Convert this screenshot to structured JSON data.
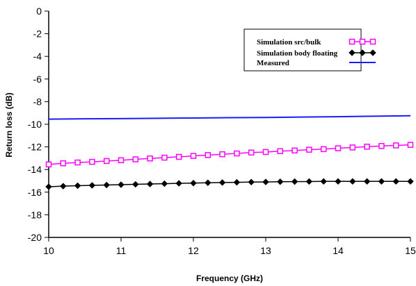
{
  "chart_data": {
    "type": "line",
    "xlabel": "Frequency (GHz)",
    "ylabel": "Return loss (dB)",
    "xlim": [
      10,
      15
    ],
    "ylim": [
      -20,
      0
    ],
    "xticks": [
      "10",
      "11",
      "12",
      "13",
      "14",
      "15"
    ],
    "yticks": [
      "0",
      "-2",
      "-4",
      "-6",
      "-8",
      "-10",
      "-12",
      "-14",
      "-16",
      "-18",
      "-20"
    ],
    "grid": false,
    "legend_position": "top-right",
    "series": [
      {
        "name": "Simulation src/bulk",
        "color": "#ff00ff",
        "marker": "square",
        "x": [
          10,
          10.2,
          10.4,
          10.6,
          10.8,
          11,
          11.2,
          11.4,
          11.6,
          11.8,
          12,
          12.2,
          12.4,
          12.6,
          12.8,
          13,
          13.2,
          13.4,
          13.6,
          13.8,
          14,
          14.2,
          14.4,
          14.6,
          14.8,
          15
        ],
        "values": [
          -13.55,
          -13.45,
          -13.38,
          -13.32,
          -13.25,
          -13.18,
          -13.1,
          -13.02,
          -12.95,
          -12.88,
          -12.8,
          -12.72,
          -12.65,
          -12.58,
          -12.5,
          -12.45,
          -12.38,
          -12.32,
          -12.25,
          -12.2,
          -12.12,
          -12.05,
          -11.98,
          -11.92,
          -11.87,
          -11.82
        ]
      },
      {
        "name": "Simulation body floating",
        "color": "#000000",
        "marker": "diamond",
        "x": [
          10,
          10.2,
          10.4,
          10.6,
          10.8,
          11,
          11.2,
          11.4,
          11.6,
          11.8,
          12,
          12.2,
          12.4,
          12.6,
          12.8,
          13,
          13.2,
          13.4,
          13.6,
          13.8,
          14,
          14.2,
          14.4,
          14.6,
          14.8,
          15
        ],
        "values": [
          -15.52,
          -15.47,
          -15.43,
          -15.4,
          -15.37,
          -15.34,
          -15.31,
          -15.28,
          -15.25,
          -15.22,
          -15.2,
          -15.17,
          -15.15,
          -15.13,
          -15.11,
          -15.1,
          -15.08,
          -15.07,
          -15.06,
          -15.05,
          -15.05,
          -15.05,
          -15.05,
          -15.05,
          -15.05,
          -15.05
        ]
      },
      {
        "name": "Measured",
        "color": "#1a1aff",
        "marker": "none",
        "x": [
          10,
          10.5,
          11,
          11.5,
          12,
          12.5,
          13,
          13.5,
          14,
          14.5,
          15
        ],
        "values": [
          -9.55,
          -9.52,
          -9.5,
          -9.47,
          -9.45,
          -9.42,
          -9.4,
          -9.36,
          -9.33,
          -9.29,
          -9.25
        ]
      }
    ]
  }
}
